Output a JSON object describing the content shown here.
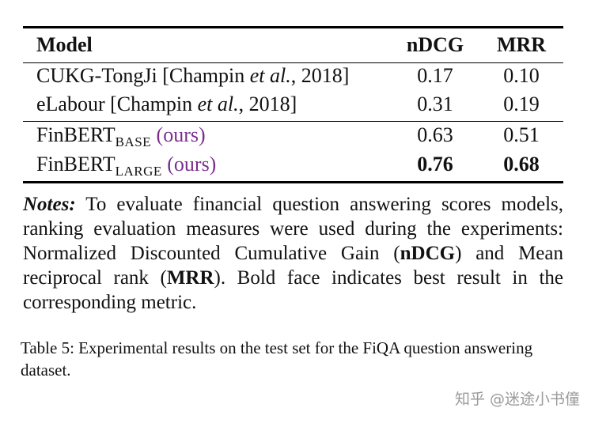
{
  "table": {
    "headers": [
      "Model",
      "nDCG",
      "MRR"
    ],
    "rows": [
      {
        "model_prefix": "CUKG-TongJi [Champin ",
        "model_italic": "et al.",
        "model_suffix": ", 2018]",
        "ndcg": "0.17",
        "mrr": "0.10"
      },
      {
        "model_prefix": "eLabour [Champin ",
        "model_italic": "et al.",
        "model_suffix": ", 2018]",
        "ndcg": "0.31",
        "mrr": "0.19"
      },
      {
        "model_base": "FinBERT",
        "model_sub": "BASE",
        "model_tag": "(ours)",
        "ndcg": "0.63",
        "mrr": "0.51"
      },
      {
        "model_base": "FinBERT",
        "model_sub": "LARGE",
        "model_tag": "(ours)",
        "ndcg": "0.76",
        "mrr": "0.68"
      }
    ]
  },
  "notes": {
    "label": "Notes:",
    "text_1": " To evaluate financial question answering scores models, ranking evaluation measures were used during the experiments: Normalized Discounted Cumulative Gain (",
    "ndcg": "nDCG",
    "text_2": ") and Mean reciprocal rank (",
    "mrr": "MRR",
    "text_3": "). Bold face indicates best result in the corresponding metric."
  },
  "caption": "Table 5: Experimental results on the test set for the FiQA question answering dataset.",
  "watermark": "知乎 @迷途小书僮"
}
